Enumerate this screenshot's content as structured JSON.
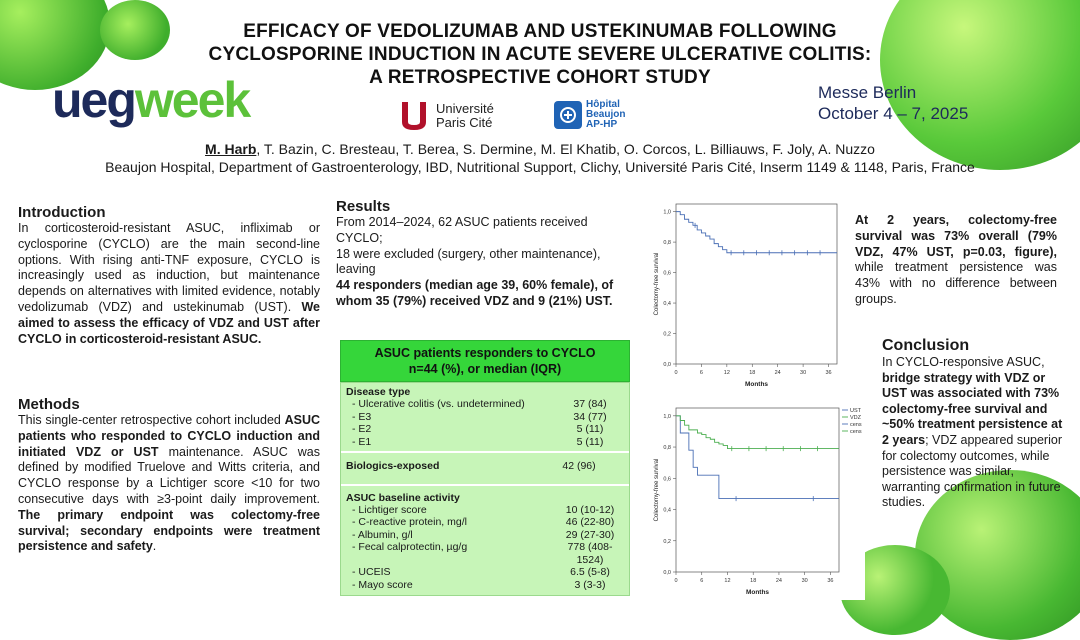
{
  "poster": {
    "title_lines": [
      "EFFICACY OF VEDOLIZUMAB AND USTEKINUMAB FOLLOWING",
      "CYCLOSPORINE INDUCTION IN ACUTE SEVERE ULCERATIVE COLITIS:",
      "A RETROSPECTIVE COHORT STUDY"
    ],
    "logo_ueg": "ueg",
    "logo_week": "week",
    "venue_line1": "Messe Berlin",
    "venue_line2": "October 4 – 7, 2025",
    "univ_line1": "Université",
    "univ_line2": "Paris Cité",
    "hosp_line1": "Hôpital",
    "hosp_line2": "Beaujon",
    "hosp_line3": "AP-HP",
    "first_author": "M. Harb",
    "other_authors": ", T. Bazin, C. Bresteau, T. Berea, S. Dermine, M. El Khatib, O. Corcos, L. Billiauws, F. Joly, A. Nuzzo",
    "affiliation": "Beaujon Hospital, Department of Gastroenterology, IBD, Nutritional Support, Clichy, Université Paris Cité, Inserm 1149 & 1148, Paris, France"
  },
  "intro": {
    "heading": "Introduction",
    "text": "In corticosteroid-resistant ASUC, infliximab or cyclosporine (CYCLO) are the main second-line options. With rising anti-TNF exposure, CYCLO is increasingly used as induction, but maintenance depends on alternatives with limited evidence, notably vedolizumab (VDZ) and ustekinumab (UST). ",
    "bold": "We aimed to assess the efficacy of VDZ and UST after CYCLO in corticosteroid-resistant ASUC."
  },
  "methods": {
    "heading": "Methods",
    "t1": "This single-center retrospective cohort included ",
    "b1": "ASUC patients who responded to CYCLO induction and initiated VDZ or UST",
    "t2": " maintenance. ASUC was defined by modified Truelove and Witts criteria, and CYCLO response by a Lichtiger score <10 for two consecutive days with ≥3-point daily improvement. ",
    "b2": "The primary endpoint was colectomy-free survival; secondary endpoints were treatment persistence and safety",
    "t3": "."
  },
  "results": {
    "heading": "Results",
    "t1": "From 2014–2024, 62 ASUC patients received CYCLO;",
    "t2": "18 were excluded (surgery, other maintenance), leaving",
    "b1": "44 responders (median age 39, 60% female), of whom 35 (79%) received VDZ and 9 (21%) UST."
  },
  "table": {
    "header_line1": "ASUC patients responders to CYCLO",
    "header_line2": "n=44 (%), or median (IQR)",
    "section1": "Disease type",
    "rows1": [
      {
        "label": "-   Ulcerative colitis (vs. undetermined)",
        "value": "37 (84)"
      },
      {
        "label": "-   E3",
        "value": "34 (77)"
      },
      {
        "label": "-   E2",
        "value": "5 (11)"
      },
      {
        "label": "-   E1",
        "value": "5 (11)"
      }
    ],
    "section2": "Biologics-exposed",
    "section2_value": "42 (96)",
    "section3": "ASUC baseline activity",
    "rows3": [
      {
        "label": "-   Lichtiger score",
        "value": "10 (10-12)"
      },
      {
        "label": "-   C-reactive protein, mg/l",
        "value": "46 (22-80)"
      },
      {
        "label": "-   Albumin, g/l",
        "value": "29 (27-30)"
      },
      {
        "label": "-   Fecal calprotectin, µg/g",
        "value": "778 (408-1524)"
      },
      {
        "label": "-   UCEIS",
        "value": "6.5 (5-8)"
      },
      {
        "label": "-   Mayo score",
        "value": "3 (3-3)"
      }
    ]
  },
  "findings": {
    "bold": "At 2 years, colectomy-free survival was 73% overall (79% VDZ, 47% UST, p=0.03, figure),",
    "text": " while treatment persistence was 43% with no difference between groups."
  },
  "conclusion": {
    "heading": "Conclusion",
    "t1": "In CYCLO-responsive ASUC, ",
    "b1": "bridge strategy with VDZ or UST was associated with 73% colectomy-free survival and ~50% treatment persistence at 2 years",
    "t2": "; VDZ appeared superior for colectomy outcomes, while persistence was similar, warranting confirmation in future studies."
  },
  "colors": {
    "green": "#35d63a",
    "navy": "#1d2a5a",
    "km_blue": "#4a6fb5",
    "km_green": "#4caf50"
  },
  "chart_data": [
    {
      "type": "line",
      "subtype": "kaplan-meier",
      "ylabel": "Colectomy-free survival",
      "xlabel": "Months",
      "xticks": [
        "0",
        "6",
        "12",
        "18",
        "24",
        "30",
        "36"
      ],
      "yticks": [
        "0,0",
        "0,2",
        "0,4",
        "0,6",
        "0,8",
        "1,0"
      ],
      "xlim": [
        0,
        38
      ],
      "ylim": [
        0,
        1.05
      ],
      "series": [
        {
          "x": [
            0,
            1,
            2,
            3,
            4,
            5,
            6,
            7,
            8,
            9,
            10,
            11,
            12,
            38
          ],
          "y": [
            1.0,
            0.98,
            0.95,
            0.93,
            0.91,
            0.88,
            0.86,
            0.84,
            0.82,
            0.79,
            0.77,
            0.75,
            0.73,
            0.73
          ]
        }
      ],
      "censored": [
        {
          "x": 4.5,
          "y": 0.91
        },
        {
          "x": 13,
          "y": 0.73
        },
        {
          "x": 16,
          "y": 0.73
        },
        {
          "x": 19,
          "y": 0.73
        },
        {
          "x": 22,
          "y": 0.73
        },
        {
          "x": 25,
          "y": 0.73
        },
        {
          "x": 28,
          "y": 0.73
        },
        {
          "x": 31,
          "y": 0.73
        },
        {
          "x": 34,
          "y": 0.73
        }
      ]
    },
    {
      "type": "line",
      "subtype": "kaplan-meier",
      "ylabel": "Colectomy-free survival",
      "xlabel": "Months",
      "xticks": [
        "0",
        "6",
        "12",
        "18",
        "24",
        "30",
        "36"
      ],
      "yticks": [
        "0,0",
        "0,2",
        "0,4",
        "0,6",
        "0,8",
        "1,0"
      ],
      "xlim": [
        0,
        38
      ],
      "ylim": [
        0,
        1.05
      ],
      "legend": [
        "UST",
        "VDZ",
        "cens",
        "cens"
      ],
      "series": [
        {
          "name": "UST",
          "x": [
            0,
            1,
            2,
            3,
            4,
            5,
            10,
            38
          ],
          "y": [
            1.0,
            0.89,
            0.89,
            0.78,
            0.67,
            0.62,
            0.47,
            0.47
          ]
        },
        {
          "name": "VDZ",
          "x": [
            0,
            1,
            2,
            3,
            4,
            5,
            6,
            7,
            8,
            9,
            10,
            11,
            12,
            38
          ],
          "y": [
            1.0,
            0.97,
            0.94,
            0.91,
            0.91,
            0.89,
            0.88,
            0.86,
            0.85,
            0.83,
            0.82,
            0.81,
            0.79,
            0.79
          ]
        }
      ],
      "censored_ust": [
        {
          "x": 14,
          "y": 0.47
        },
        {
          "x": 32,
          "y": 0.47
        }
      ],
      "censored_vdz": [
        {
          "x": 13,
          "y": 0.79
        },
        {
          "x": 17,
          "y": 0.79
        },
        {
          "x": 21,
          "y": 0.79
        },
        {
          "x": 25,
          "y": 0.79
        },
        {
          "x": 29,
          "y": 0.79
        },
        {
          "x": 33,
          "y": 0.79
        }
      ]
    }
  ]
}
